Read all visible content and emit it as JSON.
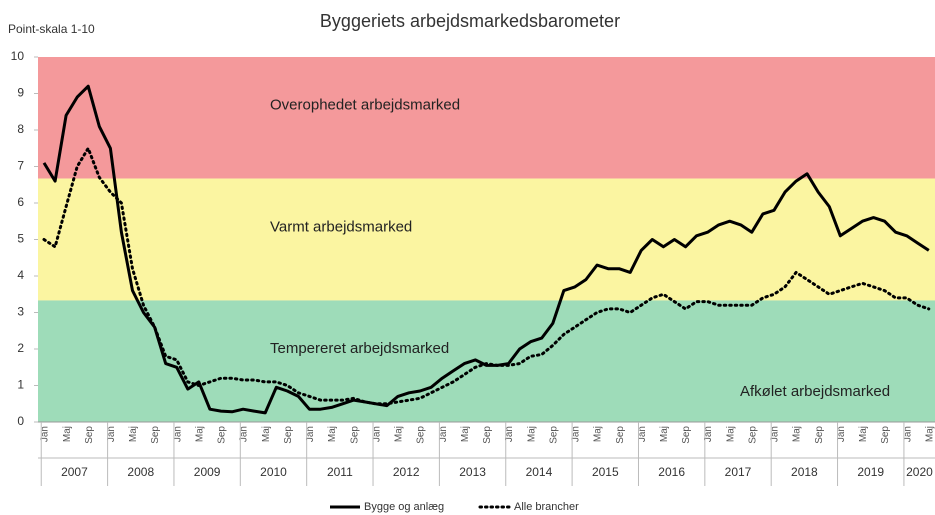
{
  "chart_data": {
    "type": "line",
    "title": "Byggeriets arbejdsmarkedsbarometer",
    "y_label": "Point-skala 1-10",
    "ylim": [
      0,
      10
    ],
    "yticks": [
      0,
      1,
      2,
      3,
      4,
      5,
      6,
      7,
      8,
      9,
      10
    ],
    "bands": [
      {
        "from": 6.67,
        "to": 10,
        "color": "#f4999b",
        "label": "Overophedet arbejdsmarked"
      },
      {
        "from": 3.33,
        "to": 6.67,
        "color": "#fbf5a1",
        "label": "Varmt arbejdsmarked"
      },
      {
        "from": 0,
        "to": 3.33,
        "color": "#9edcb9",
        "label": "Tempereret arbejdsmarked"
      }
    ],
    "annotations": [
      "Afkølet arbejdsmarked"
    ],
    "years": [
      "2007",
      "2008",
      "2009",
      "2010",
      "2011",
      "2012",
      "2013",
      "2014",
      "2015",
      "2016",
      "2017",
      "2018",
      "2019",
      "2020"
    ],
    "categories": [
      "Jan",
      null,
      "Maj",
      null,
      "Sep",
      null,
      "Jan",
      null,
      "Maj",
      null,
      "Sep",
      null,
      "Jan",
      null,
      "Maj",
      null,
      "Sep",
      null,
      "Jan",
      null,
      "Maj",
      null,
      "Sep",
      null,
      "Jan",
      null,
      "Maj",
      null,
      "Sep",
      null,
      "Jan",
      null,
      "Maj",
      null,
      "Sep",
      null,
      "Jan",
      null,
      "Maj",
      null,
      "Sep",
      null,
      "Jan",
      null,
      "Maj",
      null,
      "Sep",
      null,
      "Jan",
      null,
      "Maj",
      null,
      "Sep",
      null,
      "Jan",
      null,
      "Maj",
      null,
      "Sep",
      null,
      "Jan",
      null,
      "Maj",
      null,
      "Sep",
      null,
      "Jan",
      null,
      "Maj",
      null,
      "Sep",
      null,
      "Jan",
      null,
      "Maj",
      null,
      "Sep",
      null,
      "Jan",
      null,
      "Maj"
    ],
    "series": [
      {
        "name": "Bygge og anlæg",
        "color": "#000000",
        "style": "solid",
        "values": [
          7.1,
          6.6,
          8.4,
          8.9,
          9.2,
          8.1,
          7.5,
          5.2,
          3.6,
          3.0,
          2.6,
          1.6,
          1.5,
          0.9,
          1.1,
          0.35,
          0.3,
          0.28,
          0.35,
          0.3,
          0.25,
          0.95,
          0.85,
          0.7,
          0.35,
          0.35,
          0.4,
          0.5,
          0.6,
          0.55,
          0.5,
          0.45,
          0.7,
          0.8,
          0.85,
          0.95,
          1.2,
          1.4,
          1.6,
          1.7,
          1.55,
          1.55,
          1.6,
          2.0,
          2.2,
          2.3,
          2.7,
          3.6,
          3.7,
          3.9,
          4.3,
          4.2,
          4.2,
          4.1,
          4.7,
          5.0,
          4.8,
          5.0,
          4.8,
          5.1,
          5.2,
          5.4,
          5.5,
          5.4,
          5.2,
          5.7,
          5.8,
          6.3,
          6.6,
          6.8,
          6.3,
          5.9,
          5.1,
          5.3,
          5.5,
          5.6,
          5.5,
          5.2,
          5.1,
          4.9,
          4.7
        ]
      },
      {
        "name": "Alle brancher",
        "color": "#000000",
        "style": "dotted",
        "values": [
          5.0,
          4.8,
          5.9,
          7.0,
          7.5,
          6.7,
          6.3,
          6.0,
          4.2,
          3.2,
          2.6,
          1.8,
          1.7,
          1.1,
          1.0,
          1.1,
          1.2,
          1.2,
          1.15,
          1.15,
          1.1,
          1.1,
          1.0,
          0.8,
          0.7,
          0.6,
          0.6,
          0.6,
          0.65,
          0.55,
          0.5,
          0.5,
          0.55,
          0.6,
          0.65,
          0.8,
          0.95,
          1.1,
          1.3,
          1.5,
          1.6,
          1.55,
          1.55,
          1.6,
          1.8,
          1.85,
          2.1,
          2.4,
          2.6,
          2.8,
          3.0,
          3.1,
          3.1,
          3.0,
          3.2,
          3.4,
          3.5,
          3.3,
          3.1,
          3.3,
          3.3,
          3.2,
          3.2,
          3.2,
          3.2,
          3.4,
          3.5,
          3.7,
          4.1,
          3.9,
          3.7,
          3.5,
          3.6,
          3.7,
          3.8,
          3.7,
          3.6,
          3.4,
          3.4,
          3.2,
          3.1
        ]
      }
    ]
  }
}
